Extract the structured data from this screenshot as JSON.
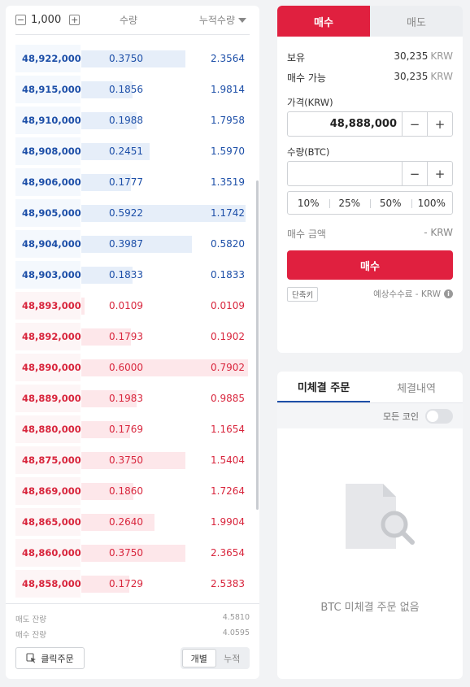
{
  "orderbook": {
    "unit_value": "1,000",
    "header_qty": "수량",
    "header_cum": "누적수량",
    "asks": [
      {
        "price": "48,922,000",
        "qty": "0.3750",
        "cum": "2.3564"
      },
      {
        "price": "48,915,000",
        "qty": "0.1856",
        "cum": "1.9814"
      },
      {
        "price": "48,910,000",
        "qty": "0.1988",
        "cum": "1.7958"
      },
      {
        "price": "48,908,000",
        "qty": "0.2451",
        "cum": "1.5970"
      },
      {
        "price": "48,906,000",
        "qty": "0.1777",
        "cum": "1.3519"
      },
      {
        "price": "48,905,000",
        "qty": "0.5922",
        "cum": "1.1742"
      },
      {
        "price": "48,904,000",
        "qty": "0.3987",
        "cum": "0.5820"
      },
      {
        "price": "48,903,000",
        "qty": "0.1833",
        "cum": "0.1833"
      }
    ],
    "bids": [
      {
        "price": "48,893,000",
        "qty": "0.0109",
        "cum": "0.0109"
      },
      {
        "price": "48,892,000",
        "qty": "0.1793",
        "cum": "0.1902"
      },
      {
        "price": "48,890,000",
        "qty": "0.6000",
        "cum": "0.7902"
      },
      {
        "price": "48,889,000",
        "qty": "0.1983",
        "cum": "0.9885"
      },
      {
        "price": "48,880,000",
        "qty": "0.1769",
        "cum": "1.1654"
      },
      {
        "price": "48,875,000",
        "qty": "0.3750",
        "cum": "1.5404"
      },
      {
        "price": "48,869,000",
        "qty": "0.1860",
        "cum": "1.7264"
      },
      {
        "price": "48,865,000",
        "qty": "0.2640",
        "cum": "1.9904"
      },
      {
        "price": "48,860,000",
        "qty": "0.3750",
        "cum": "2.3654"
      },
      {
        "price": "48,858,000",
        "qty": "0.1729",
        "cum": "2.5383"
      }
    ],
    "sell_remaining_label": "매도 잔량",
    "sell_remaining_value": "4.5810",
    "buy_remaining_label": "매수 잔량",
    "buy_remaining_value": "4.0595",
    "click_order_label": "클릭주문",
    "toggle_individual": "개별",
    "toggle_cumulative": "누적"
  },
  "order_form": {
    "tab_buy": "매수",
    "tab_sell": "매도",
    "holding_label": "보유",
    "holding_value": "30,235",
    "holding_unit": "KRW",
    "available_label": "매수 가능",
    "available_value": "30,235",
    "available_unit": "KRW",
    "price_label": "가격(KRW)",
    "price_value": "48,888,000",
    "qty_label": "수량(BTC)",
    "qty_value": "",
    "percents": [
      "10%",
      "25%",
      "50%",
      "100%"
    ],
    "amount_label": "매수 금액",
    "amount_value": "- KRW",
    "submit_label": "매수",
    "shortcut_label": "단축키",
    "fee_label": "예상수수료 - KRW"
  },
  "open_orders": {
    "tab_open": "미체결 주문",
    "tab_history": "체결내역",
    "filter_label": "모든 코인",
    "empty_text": "BTC 미체결 주문 없음"
  },
  "colors": {
    "ask_text": "#1d4fa8",
    "bid_text": "#d8253c",
    "accent": "#e0203f"
  }
}
